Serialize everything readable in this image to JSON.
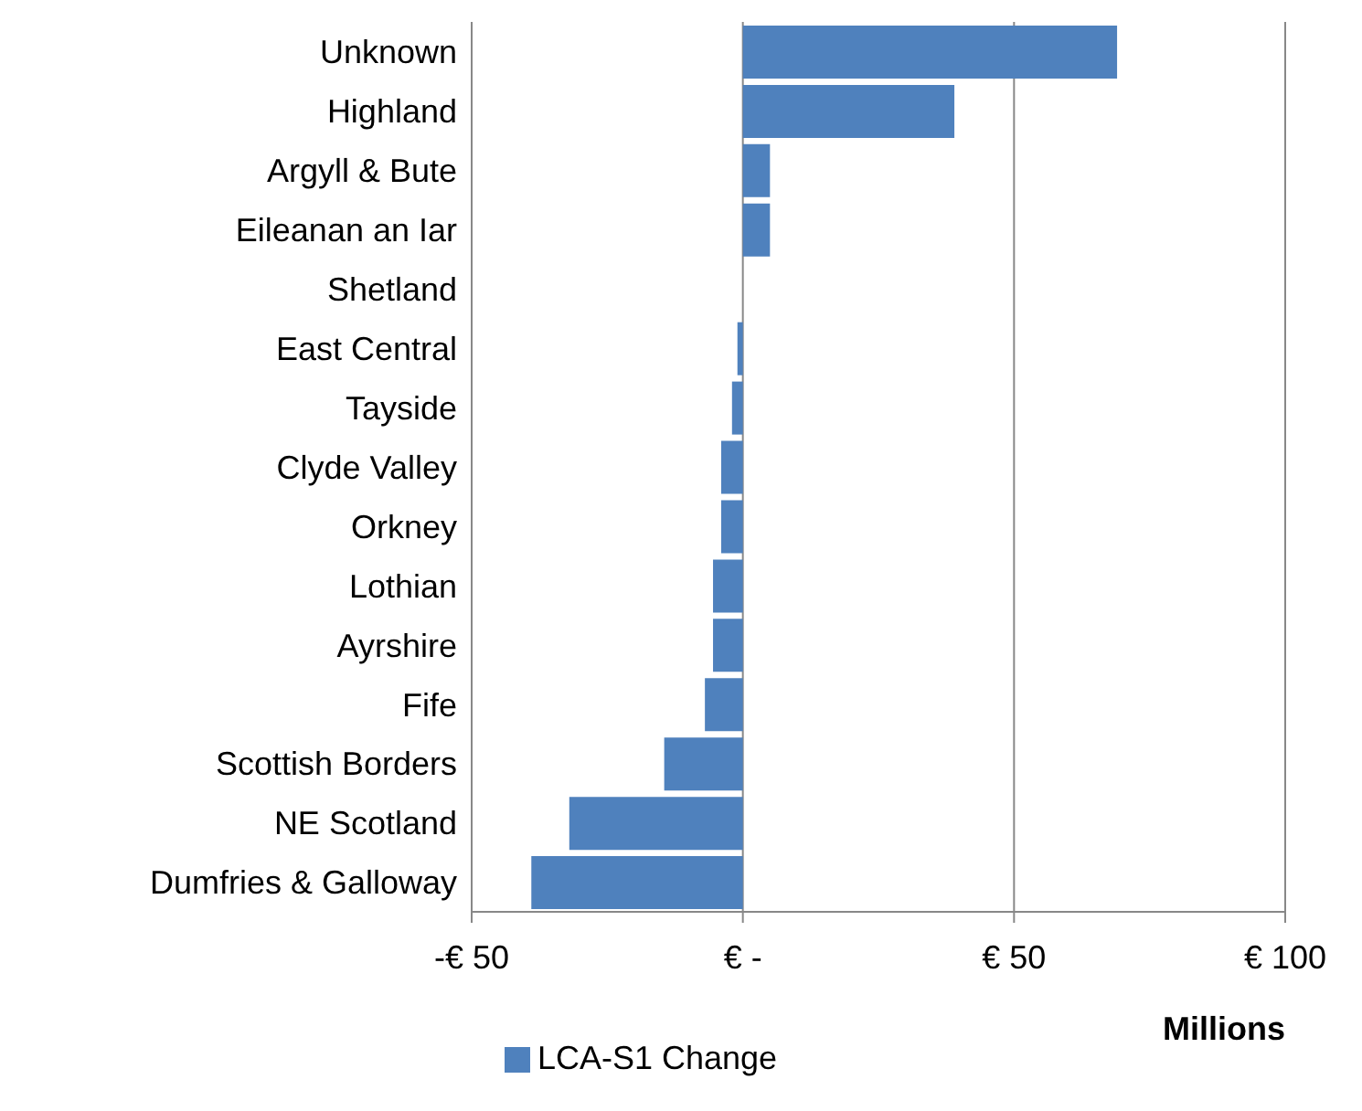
{
  "chart_data": {
    "type": "bar",
    "orientation": "horizontal",
    "categories": [
      "Unknown",
      "Highland",
      "Argyll & Bute",
      "Eileanan an Iar",
      "Shetland",
      "East Central",
      "Tayside",
      "Clyde Valley",
      "Orkney",
      "Lothian",
      "Ayrshire",
      "Fife",
      "Scottish Borders",
      "NE Scotland",
      "Dumfries & Galloway"
    ],
    "series": [
      {
        "name": "LCA-S1 Change",
        "color": "#4f81bd",
        "values": [
          69,
          39,
          5,
          5,
          0,
          -1,
          -2,
          -4,
          -4,
          -5.5,
          -5.5,
          -7,
          -14.5,
          -32,
          -39
        ]
      }
    ],
    "xlim": [
      -50,
      100
    ],
    "xticks": [
      {
        "value": -50,
        "label": "-€ 50"
      },
      {
        "value": 0,
        "label": "€ -"
      },
      {
        "value": 50,
        "label": "€ 50"
      },
      {
        "value": 100,
        "label": "€ 100"
      }
    ],
    "xlabel": "Millions",
    "grid": "x",
    "legend": "bottom"
  }
}
